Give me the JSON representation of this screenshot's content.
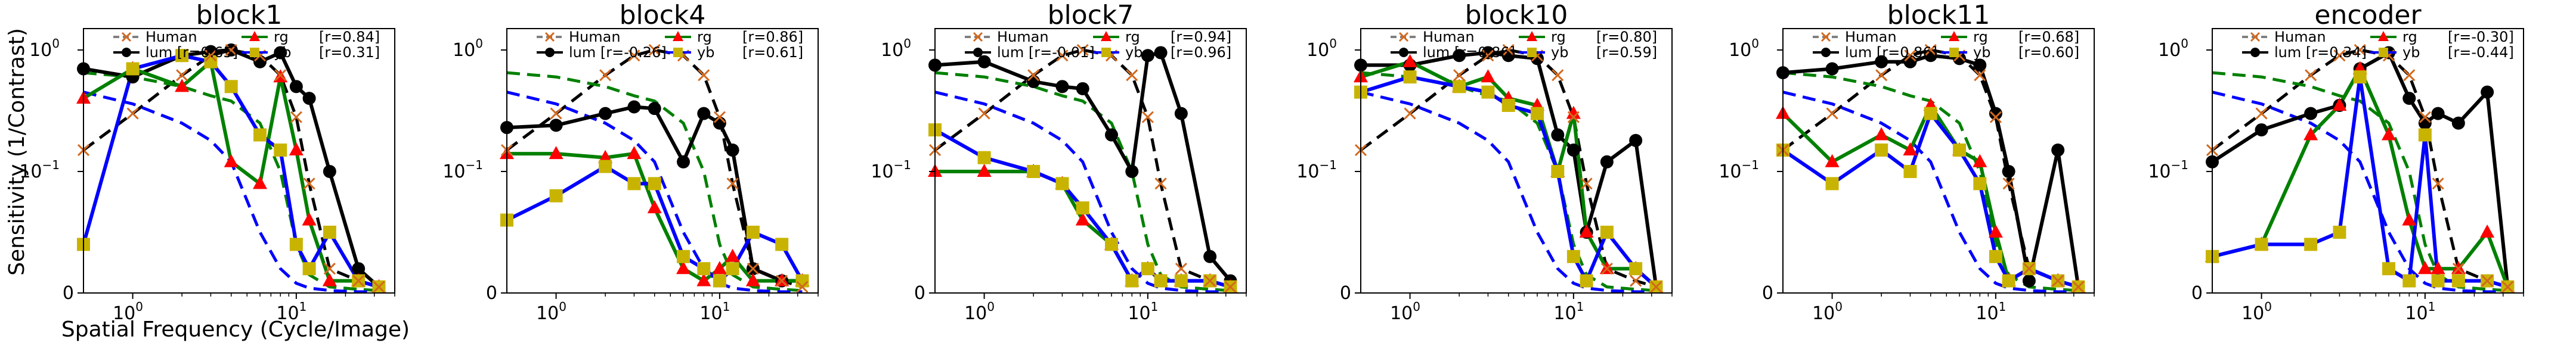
{
  "figure": {
    "ylabel": "Sensitivity (1/Contrast)",
    "xlabel": "Spatial Frequency (Cycle/Image)"
  },
  "colors": {
    "human": "#808080",
    "human_marker": "#d2691e",
    "lum": "#000000",
    "rg": "#008000",
    "rg_marker": "#ff0000",
    "yb": "#0000ff",
    "yb_marker": "#c8b400"
  },
  "chart_data": [
    {
      "type": "line",
      "title": "block1",
      "xscale": "log",
      "yscale": "symlog",
      "xlim": [
        0.5,
        40
      ],
      "ylim": [
        0,
        1.5
      ],
      "x": [
        0.5,
        1,
        2,
        3,
        4,
        6,
        8,
        10,
        12,
        16,
        24,
        32
      ],
      "series": [
        {
          "name": "Human",
          "values": [
            0.15,
            0.3,
            0.62,
            0.9,
            1.0,
            0.9,
            0.62,
            0.28,
            0.09,
            0.02,
            0.01,
            0.005
          ]
        },
        {
          "name": "lum",
          "values": [
            0.7,
            0.6,
            0.9,
            0.97,
            1.0,
            0.8,
            0.95,
            0.5,
            0.4,
            0.1,
            0.02,
            0.005
          ],
          "r": "0.65"
        },
        {
          "name": "rg",
          "values": [
            0.4,
            0.7,
            0.5,
            0.8,
            0.12,
            0.09,
            0.6,
            0.15,
            0.06,
            0.01,
            0.01,
            0.005
          ],
          "r": "0.84"
        },
        {
          "name": "yb",
          "values": [
            0.04,
            0.7,
            0.9,
            0.8,
            0.5,
            0.2,
            0.15,
            0.04,
            0.02,
            0.05,
            0.01,
            0.005
          ],
          "r": "0.31"
        }
      ],
      "legend": {
        "position": "top-center",
        "labels": [
          "Human",
          "lum [r=0.65]",
          "rg",
          "[r=0.84]",
          "yb",
          "[r=0.31]"
        ]
      }
    },
    {
      "type": "line",
      "title": "block4",
      "xscale": "log",
      "yscale": "symlog",
      "xlim": [
        0.5,
        40
      ],
      "ylim": [
        0,
        1.5
      ],
      "x": [
        0.5,
        1,
        2,
        3,
        4,
        6,
        8,
        10,
        12,
        16,
        24,
        32
      ],
      "series": [
        {
          "name": "Human",
          "values": [
            0.15,
            0.3,
            0.62,
            0.9,
            1.0,
            0.9,
            0.62,
            0.28,
            0.09,
            0.02,
            0.01,
            0.005
          ]
        },
        {
          "name": "lum",
          "values": [
            0.23,
            0.24,
            0.3,
            0.34,
            0.33,
            0.12,
            0.3,
            0.25,
            0.15,
            0.02,
            0.01,
            0.01
          ],
          "r": "-0.26"
        },
        {
          "name": "rg",
          "values": [
            0.14,
            0.14,
            0.13,
            0.14,
            0.07,
            0.02,
            0.01,
            0.02,
            0.03,
            0.01,
            0.01,
            0.01
          ],
          "r": "0.86"
        },
        {
          "name": "yb",
          "values": [
            0.06,
            0.08,
            0.11,
            0.09,
            0.09,
            0.03,
            0.02,
            0.01,
            0.02,
            0.05,
            0.04,
            0.01
          ],
          "r": "0.61"
        }
      ],
      "legend": {
        "position": "top-center",
        "labels": [
          "Human",
          "lum [r=-0.26]",
          "rg",
          "[r=0.86]",
          "yb",
          "[r=0.61]"
        ]
      }
    },
    {
      "type": "line",
      "title": "block7",
      "xscale": "log",
      "yscale": "symlog",
      "xlim": [
        0.5,
        40
      ],
      "ylim": [
        0,
        1.5
      ],
      "x": [
        0.5,
        1,
        2,
        3,
        4,
        6,
        8,
        10,
        12,
        16,
        24,
        32
      ],
      "series": [
        {
          "name": "Human",
          "values": [
            0.15,
            0.3,
            0.62,
            0.9,
            1.0,
            0.9,
            0.62,
            0.28,
            0.09,
            0.02,
            0.01,
            0.005
          ]
        },
        {
          "name": "lum",
          "values": [
            0.75,
            0.8,
            0.55,
            0.5,
            0.48,
            0.2,
            0.1,
            0.9,
            0.95,
            0.3,
            0.03,
            0.01
          ],
          "r": "-0.01"
        },
        {
          "name": "rg",
          "values": [
            0.1,
            0.1,
            0.1,
            0.09,
            0.06,
            0.04,
            0.01,
            0.02,
            0.01,
            0.01,
            0.01,
            0.005
          ],
          "r": "0.94"
        },
        {
          "name": "yb",
          "values": [
            0.22,
            0.13,
            0.1,
            0.09,
            0.07,
            0.04,
            0.01,
            0.02,
            0.01,
            0.01,
            0.01,
            0.005
          ],
          "r": "0.96"
        }
      ],
      "legend": {
        "position": "top-center",
        "labels": [
          "Human",
          "lum [r=-0.01]",
          "rg",
          "[r=0.94]",
          "yb",
          "[r=0.96]"
        ]
      }
    },
    {
      "type": "line",
      "title": "block10",
      "xscale": "log",
      "yscale": "symlog",
      "xlim": [
        0.5,
        40
      ],
      "ylim": [
        0,
        1.5
      ],
      "x": [
        0.5,
        1,
        2,
        3,
        4,
        6,
        8,
        10,
        12,
        16,
        24,
        32
      ],
      "series": [
        {
          "name": "Human",
          "values": [
            0.15,
            0.3,
            0.62,
            0.9,
            1.0,
            0.9,
            0.62,
            0.28,
            0.09,
            0.02,
            0.01,
            0.005
          ]
        },
        {
          "name": "lum",
          "values": [
            0.75,
            0.75,
            0.9,
            0.95,
            0.9,
            0.85,
            0.2,
            0.15,
            0.05,
            0.12,
            0.18,
            0.005
          ],
          "r": "0.86"
        },
        {
          "name": "rg",
          "values": [
            0.6,
            0.8,
            0.5,
            0.6,
            0.4,
            0.35,
            0.1,
            0.3,
            0.05,
            0.02,
            0.02,
            0.005
          ],
          "r": "0.80"
        },
        {
          "name": "yb",
          "values": [
            0.45,
            0.6,
            0.5,
            0.45,
            0.35,
            0.3,
            0.1,
            0.03,
            0.01,
            0.05,
            0.02,
            0.005
          ],
          "r": "0.59"
        }
      ],
      "legend": {
        "position": "top-center",
        "labels": [
          "Human",
          "lum [r=0.86]",
          "rg",
          "[r=0.80]",
          "yb",
          "[r=0.59]"
        ]
      }
    },
    {
      "type": "line",
      "title": "block11",
      "xscale": "log",
      "yscale": "symlog",
      "xlim": [
        0.5,
        40
      ],
      "ylim": [
        0,
        1.5
      ],
      "x": [
        0.5,
        1,
        2,
        3,
        4,
        6,
        8,
        10,
        12,
        16,
        24,
        32
      ],
      "series": [
        {
          "name": "Human",
          "values": [
            0.15,
            0.3,
            0.62,
            0.9,
            1.0,
            0.9,
            0.62,
            0.28,
            0.09,
            0.02,
            0.01,
            0.005
          ]
        },
        {
          "name": "lum",
          "values": [
            0.65,
            0.7,
            0.8,
            0.8,
            0.9,
            0.85,
            0.75,
            0.3,
            0.1,
            0.01,
            0.15,
            0.005
          ],
          "r": "0.86"
        },
        {
          "name": "rg",
          "values": [
            0.3,
            0.12,
            0.2,
            0.15,
            0.35,
            0.15,
            0.12,
            0.05,
            0.01,
            0.02,
            0.01,
            0.005
          ],
          "r": "0.68"
        },
        {
          "name": "yb",
          "values": [
            0.15,
            0.09,
            0.15,
            0.1,
            0.3,
            0.15,
            0.09,
            0.03,
            0.01,
            0.02,
            0.01,
            0.005
          ],
          "r": "0.60"
        }
      ],
      "legend": {
        "position": "top-center",
        "labels": [
          "Human",
          "lum [r=0.86]",
          "rg",
          "[r=0.68]",
          "yb",
          "[r=0.60]"
        ]
      }
    },
    {
      "type": "line",
      "title": "encoder",
      "xscale": "log",
      "yscale": "symlog",
      "xlim": [
        0.5,
        40
      ],
      "ylim": [
        0,
        1.5
      ],
      "x": [
        0.5,
        1,
        2,
        3,
        4,
        6,
        8,
        10,
        12,
        16,
        24,
        32
      ],
      "series": [
        {
          "name": "Human",
          "values": [
            0.15,
            0.3,
            0.62,
            0.9,
            1.0,
            0.9,
            0.62,
            0.28,
            0.09,
            0.02,
            0.01,
            0.005
          ]
        },
        {
          "name": "lum",
          "values": [
            0.12,
            0.22,
            0.3,
            0.35,
            0.7,
            0.95,
            0.4,
            0.25,
            0.3,
            0.25,
            0.45,
            0.005
          ],
          "r": "0.34"
        },
        {
          "name": "rg",
          "values": [
            0.03,
            0.04,
            0.2,
            0.35,
            0.7,
            0.2,
            0.06,
            0.02,
            0.02,
            0.02,
            0.05,
            0.005
          ],
          "r": "-0.30"
        },
        {
          "name": "yb",
          "values": [
            0.03,
            0.04,
            0.04,
            0.05,
            0.6,
            0.02,
            0.01,
            0.2,
            0.01,
            0.01,
            0.01,
            0.005
          ],
          "r": "-0.44"
        }
      ],
      "legend": {
        "position": "top-center",
        "labels": [
          "Human",
          "lum [r=0.34]",
          "rg",
          "[r=-0.30]",
          "yb",
          "[r=-0.44]"
        ]
      }
    }
  ]
}
